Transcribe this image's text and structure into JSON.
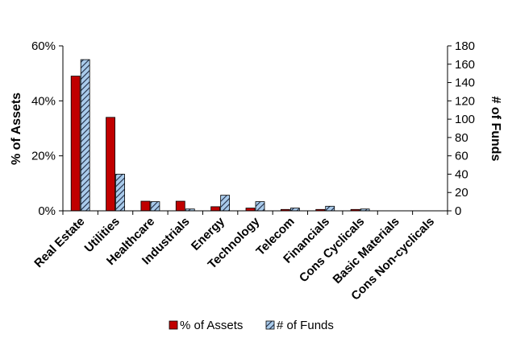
{
  "chart_data": {
    "type": "bar",
    "categories": [
      "Real Estate",
      "Utilities",
      "Healthcare",
      "Industrials",
      "Energy",
      "Technology",
      "Telecom",
      "Financials",
      "Cons Cyclicals",
      "Basic Materials",
      "Cons Non-cyclicals"
    ],
    "series": [
      {
        "name": "% of Assets",
        "axis": "left",
        "color": "#c00000",
        "values": [
          49,
          34,
          3.5,
          3.5,
          1.5,
          1,
          0.5,
          0.5,
          0.5,
          0,
          0
        ]
      },
      {
        "name": "# of Funds",
        "axis": "right",
        "color": "#9dc3e6",
        "pattern": "diagonal-hatch",
        "values": [
          165,
          40,
          10,
          2,
          17,
          10,
          3,
          5,
          2,
          0,
          0
        ]
      }
    ],
    "ylabel_left": "% of Assets",
    "ylabel_right": "# of Funds",
    "ylim_left": [
      0,
      60
    ],
    "ylim_right": [
      0,
      180
    ],
    "yticks_left": [
      "0%",
      "20%",
      "40%",
      "60%"
    ],
    "yticks_right": [
      "0",
      "20",
      "40",
      "60",
      "80",
      "100",
      "120",
      "140",
      "160",
      "180"
    ],
    "legend_position": "bottom",
    "grid": false
  }
}
